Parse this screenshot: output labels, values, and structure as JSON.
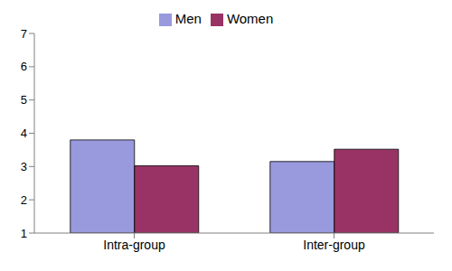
{
  "chart_data": {
    "type": "bar",
    "categories": [
      "Intra-group",
      "Inter-group"
    ],
    "series": [
      {
        "name": "Men",
        "color": "#9999dd",
        "values": [
          3.8,
          3.15
        ]
      },
      {
        "name": "Women",
        "color": "#993366",
        "values": [
          3.02,
          3.52
        ]
      }
    ],
    "ylim": [
      1,
      7
    ],
    "yticks": [
      1,
      2,
      3,
      4,
      5,
      6,
      7
    ],
    "grid": false,
    "legend": "top"
  }
}
